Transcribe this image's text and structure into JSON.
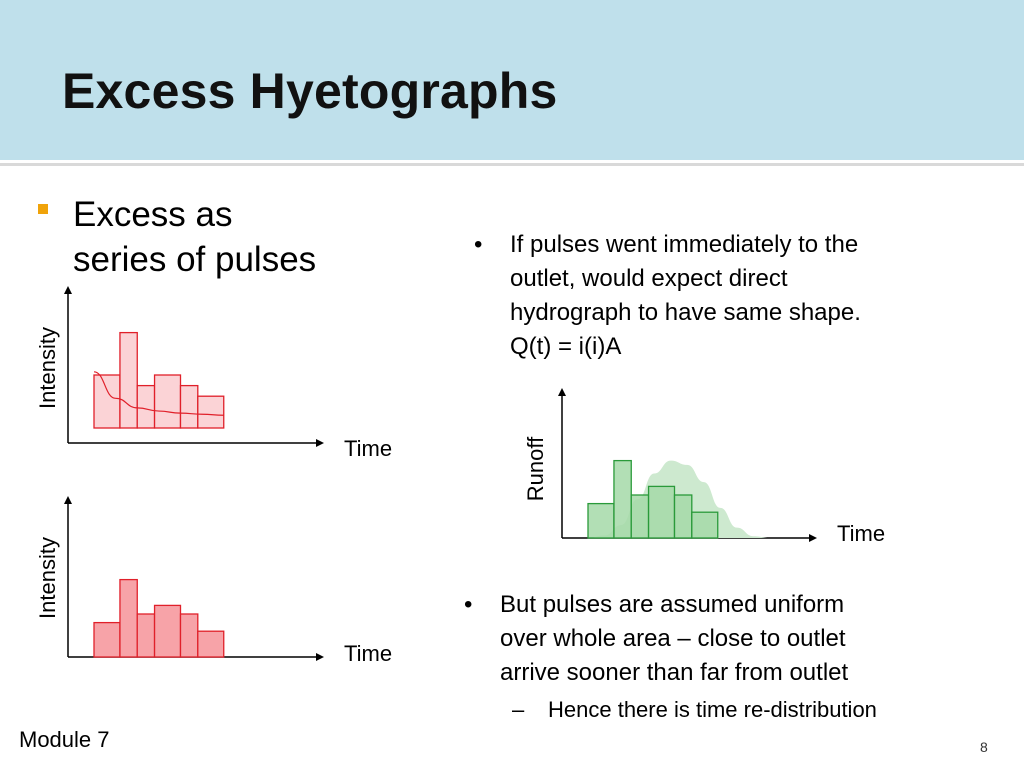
{
  "title": "Excess Hyetographs",
  "bullet_main": {
    "line1": "Excess as",
    "line2": "series of pulses"
  },
  "bullets_right": [
    {
      "symbol": "•",
      "lines": [
        "If pulses went immediately to the",
        "outlet, would expect direct",
        "hydrograph to have same shape.",
        "Q(t) = i(i)A"
      ]
    },
    {
      "symbol": "•",
      "lines": [
        "But pulses are assumed uniform",
        "over whole area – close to outlet",
        "arrive sooner than far from outlet"
      ]
    }
  ],
  "sub_bullet": {
    "symbol": "–",
    "text": "Hence there is time re-distribution"
  },
  "footer": {
    "module": "Module 7",
    "page": "8"
  },
  "figures": {
    "hyeto_top": {
      "y_label": "Intensity",
      "x_label": "Time"
    },
    "hyeto_bottom": {
      "y_label": "Intensity",
      "x_label": "Time"
    },
    "hydrograph": {
      "y_label": "Runoff",
      "x_label": "Time"
    }
  },
  "colors": {
    "title_band": "#bfe0eb",
    "bullet_square": "#f0a30a",
    "bars_top_fill": "#fbd3d6",
    "bars_top_stroke": "#e0202a",
    "bars_bottom_fill": "#f7a3a8",
    "bars_green_fill": "#a4d9a8",
    "bars_green_stroke": "#2a9a3a",
    "curve_green": "#cde9cf"
  },
  "chart_data": [
    {
      "type": "bar",
      "name": "hyeto_top",
      "values": [
        5,
        9,
        4,
        5,
        4,
        3
      ],
      "widths": [
        1.5,
        1,
        1,
        1.5,
        1,
        1.5
      ],
      "curve": [
        5.3,
        2.8,
        1.9,
        1.6,
        1.4,
        1.3,
        1.2
      ]
    },
    {
      "type": "bar",
      "name": "hyeto_bottom",
      "values": [
        4,
        9,
        5,
        6,
        5,
        3
      ],
      "widths": [
        1.5,
        1,
        1,
        1.5,
        1,
        1.5
      ]
    },
    {
      "type": "bar",
      "name": "hydrograph",
      "values": [
        4,
        9,
        5,
        6,
        5,
        3
      ],
      "widths": [
        1.5,
        1,
        1,
        1.5,
        1,
        1.5
      ],
      "curve": [
        0,
        0.3,
        1.5,
        4.5,
        7.5,
        9,
        8.5,
        6.5,
        3.5,
        1.2,
        0.2,
        0
      ]
    }
  ]
}
